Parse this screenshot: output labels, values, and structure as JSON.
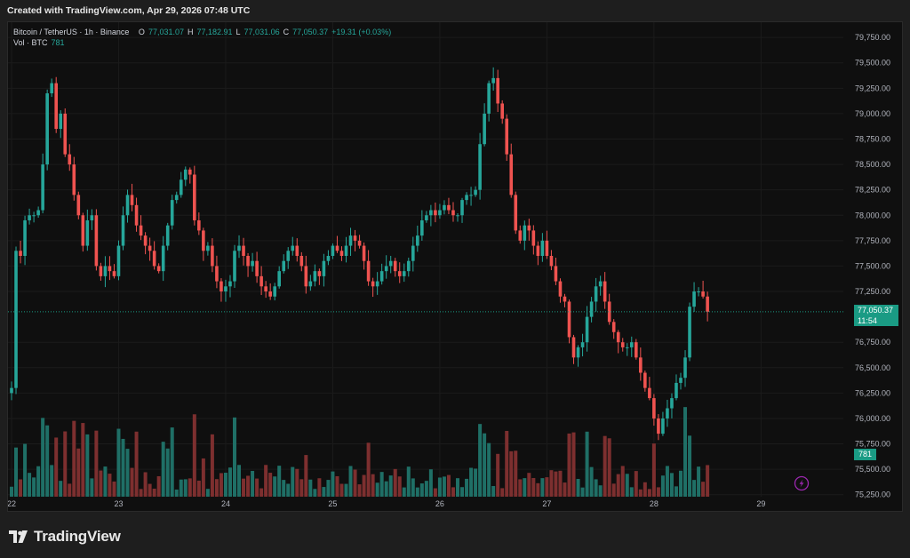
{
  "header": {
    "created_text": "Created with TradingView.com, Apr 29, 2026 07:48 UTC"
  },
  "legend": {
    "symbol": "Bitcoin / TetherUS · 1h · Binance",
    "o_label": "O",
    "o_value": "77,031.07",
    "h_label": "H",
    "h_value": "77,182.91",
    "l_label": "L",
    "l_value": "77,031.06",
    "c_label": "C",
    "c_value": "77,050.37",
    "change": "+19.31 (+0.03%)",
    "vol_label": "Vol · BTC",
    "vol_value": "781"
  },
  "price_label": {
    "price": "77,050.37",
    "countdown": "11:54"
  },
  "volume_label": "781",
  "branding": {
    "name": "TradingView",
    "icon": "tradingview-logo-icon"
  },
  "colors": {
    "up": "#26a69a",
    "down": "#ef5350",
    "up_vol": "#1f6f66",
    "down_vol": "#7d2f2f",
    "price_line": "#1a9b84"
  },
  "chart_data": {
    "type": "candlestick",
    "title": "Bitcoin / TetherUS · 1h · Binance",
    "y_axis": {
      "ticks": [
        "79,750.00",
        "79,500.00",
        "79,250.00",
        "79,000.00",
        "78,750.00",
        "78,500.00",
        "78,250.00",
        "78,000.00",
        "77,750.00",
        "77,500.00",
        "77,250.00",
        "76,750.00",
        "76,500.00",
        "76,250.00",
        "76,000.00",
        "75,750.00",
        "75,500.00",
        "75,250.00"
      ],
      "tick_values": [
        79750,
        79500,
        79250,
        79000,
        78750,
        78500,
        78250,
        78000,
        77750,
        77500,
        77250,
        76750,
        76500,
        76250,
        76000,
        75750,
        75500,
        75250
      ],
      "range": [
        75230,
        79830
      ]
    },
    "x_axis": {
      "ticks": [
        "22",
        "23",
        "24",
        "25",
        "26",
        "27",
        "28",
        "29"
      ],
      "tick_index": [
        0,
        24,
        48,
        72,
        96,
        120,
        144,
        168
      ]
    },
    "last_price": 77050.37,
    "closes": [
      76300,
      77650,
      77600,
      77950,
      78000,
      78000,
      78050,
      78500,
      79200,
      79300,
      78850,
      79000,
      78600,
      78500,
      78200,
      78000,
      77700,
      77950,
      78000,
      77500,
      77400,
      77500,
      77450,
      77400,
      77700,
      78000,
      78200,
      78100,
      77900,
      77800,
      77700,
      77650,
      77500,
      77450,
      77700,
      77900,
      78150,
      78200,
      78350,
      78450,
      78400,
      77950,
      77850,
      77650,
      77700,
      77500,
      77350,
      77250,
      77300,
      77350,
      77650,
      77700,
      77600,
      77500,
      77550,
      77400,
      77300,
      77250,
      77200,
      77300,
      77450,
      77550,
      77650,
      77700,
      77600,
      77500,
      77300,
      77350,
      77450,
      77400,
      77550,
      77600,
      77700,
      77650,
      77600,
      77700,
      77800,
      77750,
      77700,
      77550,
      77350,
      77300,
      77350,
      77450,
      77500,
      77550,
      77450,
      77400,
      77450,
      77550,
      77700,
      77800,
      77950,
      78000,
      78050,
      78000,
      78050,
      78100,
      78050,
      78000,
      78000,
      78150,
      78200,
      78200,
      78250,
      78700,
      79000,
      79300,
      79350,
      79100,
      78950,
      78600,
      78200,
      77850,
      77750,
      77900,
      77850,
      77700,
      77600,
      77750,
      77600,
      77500,
      77350,
      77200,
      77150,
      76800,
      76600,
      76700,
      76750,
      77000,
      77150,
      77300,
      77350,
      77150,
      76950,
      76850,
      76750,
      76700,
      76700,
      76750,
      76600,
      76450,
      76300,
      76200,
      76000,
      75850,
      76000,
      76100,
      76200,
      76350,
      76400,
      76600,
      77100,
      77250,
      77250,
      77200,
      77050
    ]
  }
}
